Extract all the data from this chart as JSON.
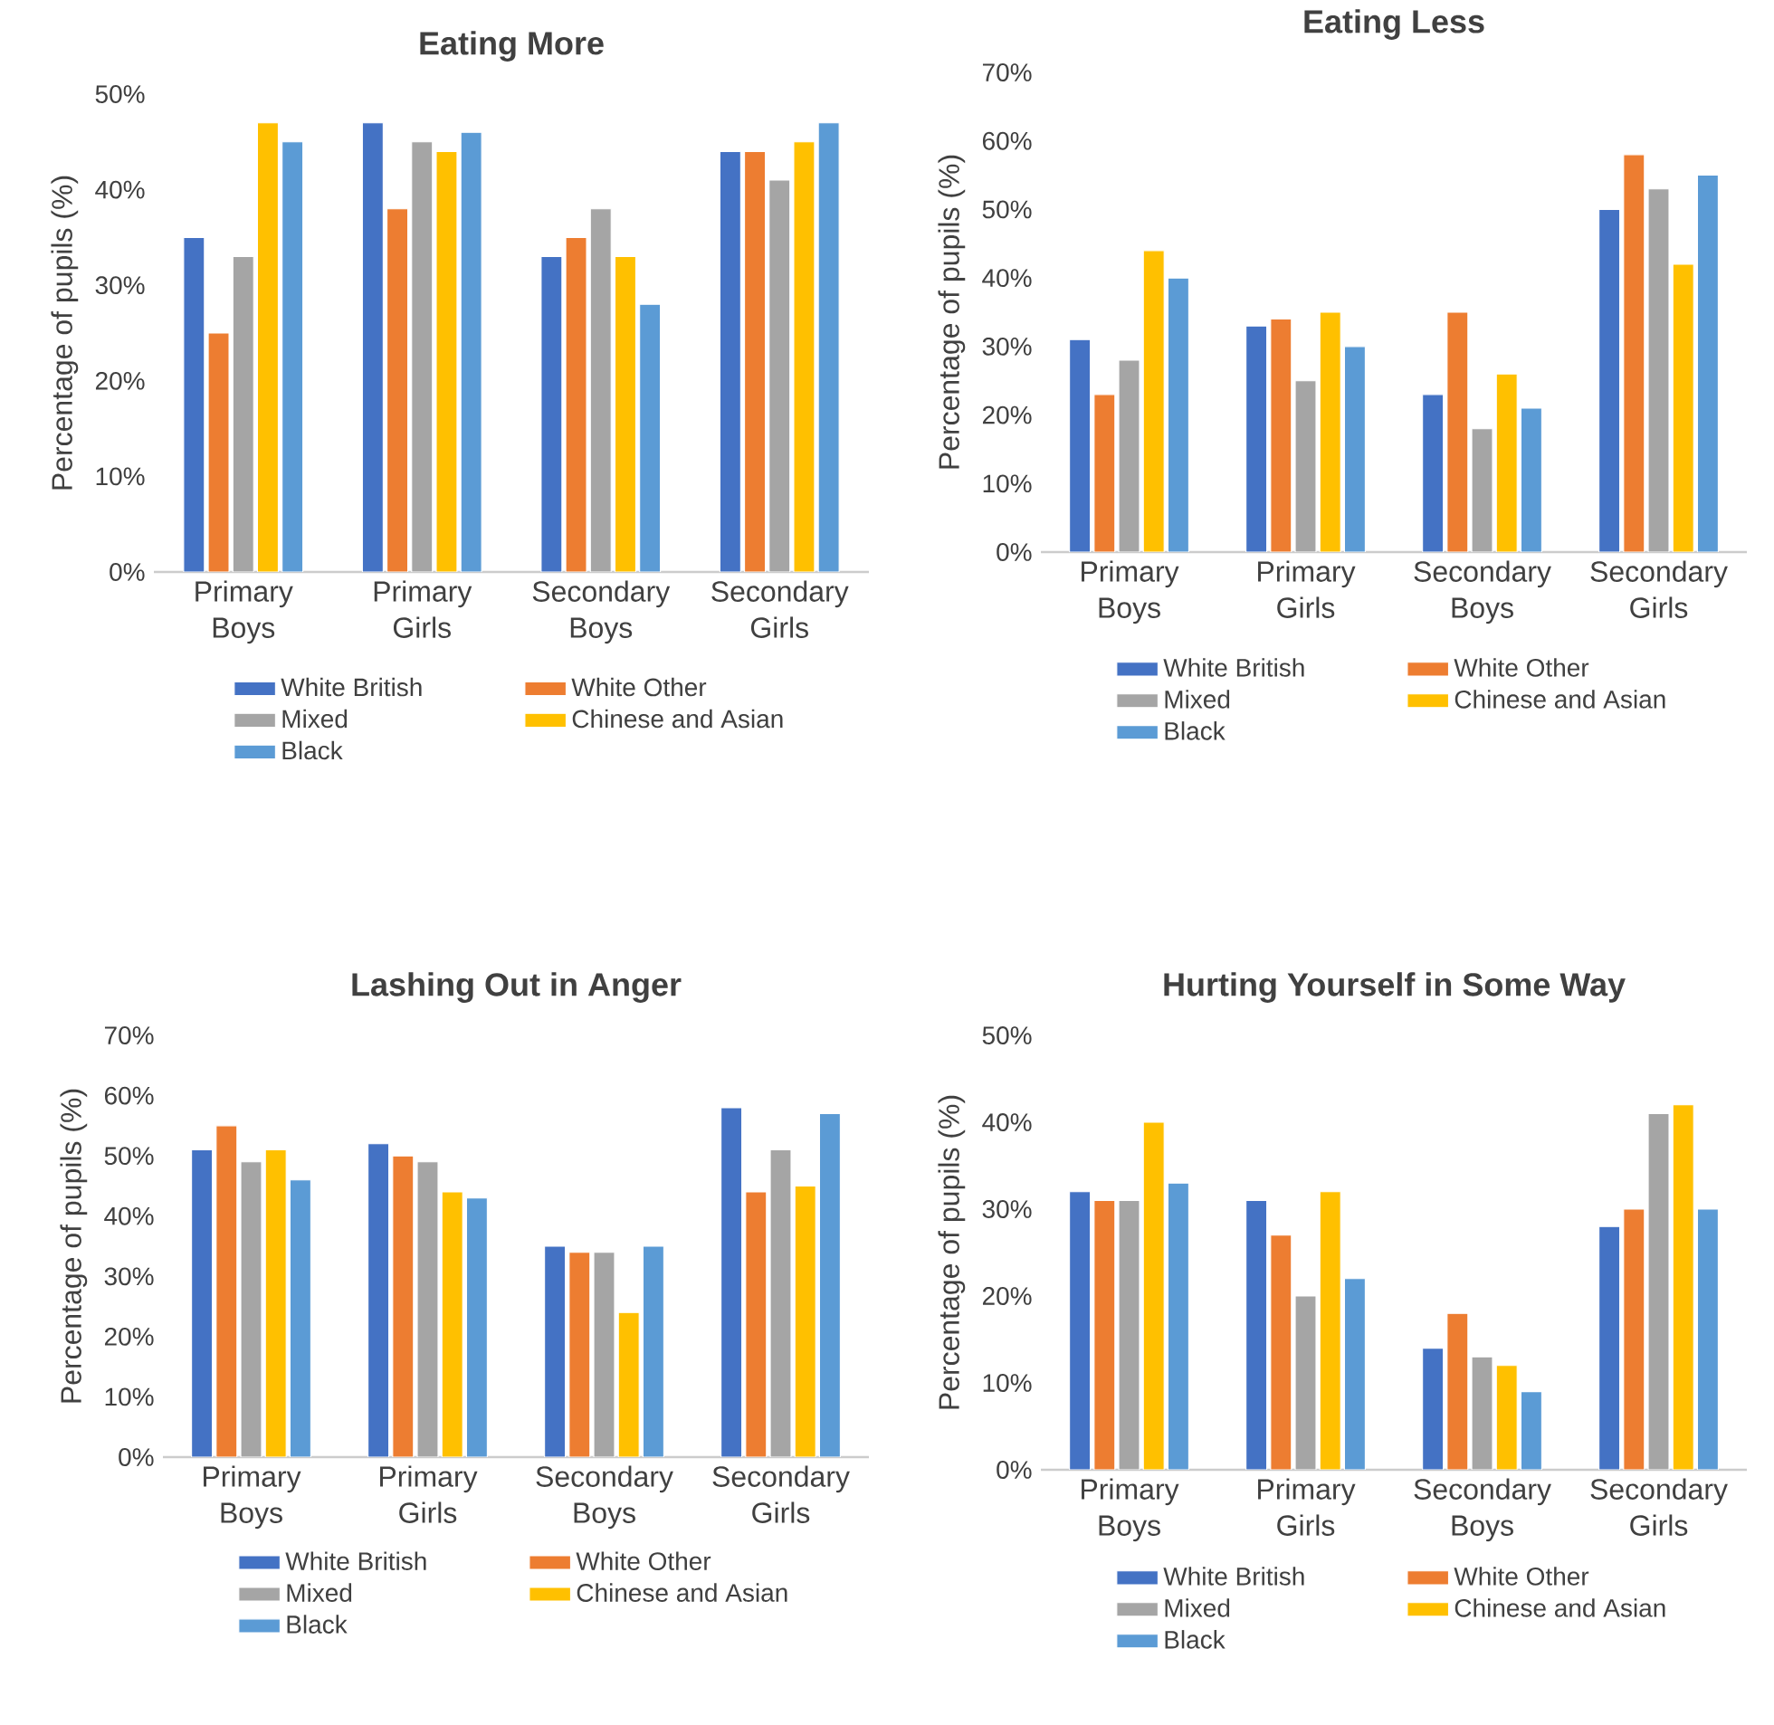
{
  "chart_data": [
    {
      "type": "bar",
      "title": "Eating More",
      "ylabel": "Percentage of pupils (%)",
      "categories": [
        "Primary Boys",
        "Primary Girls",
        "Secondary Boys",
        "Secondary Girls"
      ],
      "ylim": [
        0,
        50
      ],
      "yticks": [
        {
          "value": 0,
          "label": "0%"
        },
        {
          "value": 10,
          "label": "10%"
        },
        {
          "value": 20,
          "label": "20%"
        },
        {
          "value": 30,
          "label": "30%"
        },
        {
          "value": 40,
          "label": "40%"
        },
        {
          "value": 50,
          "label": "50%"
        }
      ],
      "legend": "bottom",
      "series": [
        {
          "name": "White British",
          "color": "#4472c4",
          "values": [
            35,
            47,
            33,
            44
          ]
        },
        {
          "name": "White Other",
          "color": "#ed7d31",
          "values": [
            25,
            38,
            35,
            44
          ]
        },
        {
          "name": "Mixed",
          "color": "#a5a5a5",
          "values": [
            33,
            45,
            38,
            41
          ]
        },
        {
          "name": "Chinese and Asian",
          "color": "#ffc000",
          "values": [
            47,
            44,
            33,
            45
          ]
        },
        {
          "name": "Black",
          "color": "#5b9bd5",
          "values": [
            45,
            46,
            28,
            47
          ]
        }
      ]
    },
    {
      "type": "bar",
      "title": "Eating Less",
      "ylabel": "Percentage of pupils (%)",
      "categories": [
        "Primary Boys",
        "Primary Girls",
        "Secondary Boys",
        "Secondary Girls"
      ],
      "ylim": [
        0,
        70
      ],
      "yticks": [
        {
          "value": 0,
          "label": "0%"
        },
        {
          "value": 10,
          "label": "10%"
        },
        {
          "value": 20,
          "label": "20%"
        },
        {
          "value": 30,
          "label": "30%"
        },
        {
          "value": 40,
          "label": "40%"
        },
        {
          "value": 50,
          "label": "50%"
        },
        {
          "value": 60,
          "label": "60%"
        },
        {
          "value": 70,
          "label": "70%"
        }
      ],
      "legend": "bottom",
      "series": [
        {
          "name": "White British",
          "color": "#4472c4",
          "values": [
            31,
            33,
            23,
            50
          ]
        },
        {
          "name": "White Other",
          "color": "#ed7d31",
          "values": [
            23,
            34,
            35,
            58
          ]
        },
        {
          "name": "Mixed",
          "color": "#a5a5a5",
          "values": [
            28,
            25,
            18,
            53
          ]
        },
        {
          "name": "Chinese and Asian",
          "color": "#ffc000",
          "values": [
            44,
            35,
            26,
            42
          ]
        },
        {
          "name": "Black",
          "color": "#5b9bd5",
          "values": [
            40,
            30,
            21,
            55
          ]
        }
      ]
    },
    {
      "type": "bar",
      "title": "Lashing Out in Anger",
      "ylabel": "Percentage of pupils (%)",
      "categories": [
        "Primary Boys",
        "Primary Girls",
        "Secondary Boys",
        "Secondary Girls"
      ],
      "ylim": [
        0,
        70
      ],
      "yticks": [
        {
          "value": 0,
          "label": "0%"
        },
        {
          "value": 10,
          "label": "10%"
        },
        {
          "value": 20,
          "label": "20%"
        },
        {
          "value": 30,
          "label": "30%"
        },
        {
          "value": 40,
          "label": "40%"
        },
        {
          "value": 50,
          "label": "50%"
        },
        {
          "value": 60,
          "label": "60%"
        },
        {
          "value": 70,
          "label": "70%"
        }
      ],
      "legend": "bottom",
      "series": [
        {
          "name": "White British",
          "color": "#4472c4",
          "values": [
            51,
            52,
            35,
            58
          ]
        },
        {
          "name": "White Other",
          "color": "#ed7d31",
          "values": [
            55,
            50,
            34,
            44
          ]
        },
        {
          "name": "Mixed",
          "color": "#a5a5a5",
          "values": [
            49,
            49,
            34,
            51
          ]
        },
        {
          "name": "Chinese and Asian",
          "color": "#ffc000",
          "values": [
            51,
            44,
            24,
            45
          ]
        },
        {
          "name": "Black",
          "color": "#5b9bd5",
          "values": [
            46,
            43,
            35,
            57
          ]
        }
      ]
    },
    {
      "type": "bar",
      "title": "Hurting Yourself in Some Way",
      "ylabel": "Percentage of pupils (%)",
      "categories": [
        "Primary Boys",
        "Primary Girls",
        "Secondary Boys",
        "Secondary Girls"
      ],
      "ylim": [
        0,
        50
      ],
      "yticks": [
        {
          "value": 0,
          "label": "0%"
        },
        {
          "value": 10,
          "label": "10%"
        },
        {
          "value": 20,
          "label": "20%"
        },
        {
          "value": 30,
          "label": "30%"
        },
        {
          "value": 40,
          "label": "40%"
        },
        {
          "value": 50,
          "label": "50%"
        }
      ],
      "legend": "bottom",
      "series": [
        {
          "name": "White British",
          "color": "#4472c4",
          "values": [
            32,
            31,
            14,
            28
          ]
        },
        {
          "name": "White Other",
          "color": "#ed7d31",
          "values": [
            31,
            27,
            18,
            30
          ]
        },
        {
          "name": "Mixed",
          "color": "#a5a5a5",
          "values": [
            31,
            20,
            13,
            41
          ]
        },
        {
          "name": "Chinese and Asian",
          "color": "#ffc000",
          "values": [
            40,
            32,
            12,
            42
          ]
        },
        {
          "name": "Black",
          "color": "#5b9bd5",
          "values": [
            33,
            22,
            9,
            30
          ]
        }
      ]
    }
  ]
}
